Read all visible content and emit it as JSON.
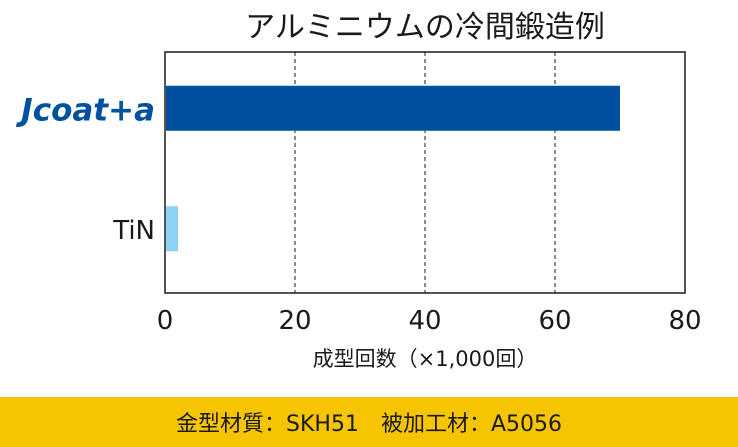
{
  "chart_data": {
    "type": "bar",
    "orientation": "horizontal",
    "title": "アルミニウムの冷間鍛造例",
    "categories": [
      "Jcoat+a",
      "TiN"
    ],
    "values": [
      70,
      2
    ],
    "xlabel": "成型回数（×1,000回）",
    "ylabel": "",
    "xlim": [
      0,
      80
    ],
    "xticks": [
      0,
      20,
      40,
      60,
      80
    ],
    "grid": "vertical-dashed",
    "colors": [
      "#0050a0",
      "#8dd2f5"
    ],
    "category_label_colors": [
      "#0050a0",
      "#1a1a1a"
    ]
  },
  "footer": {
    "text": "金型材質：SKH51　被加工材：A5056",
    "background": "#f6c400"
  }
}
